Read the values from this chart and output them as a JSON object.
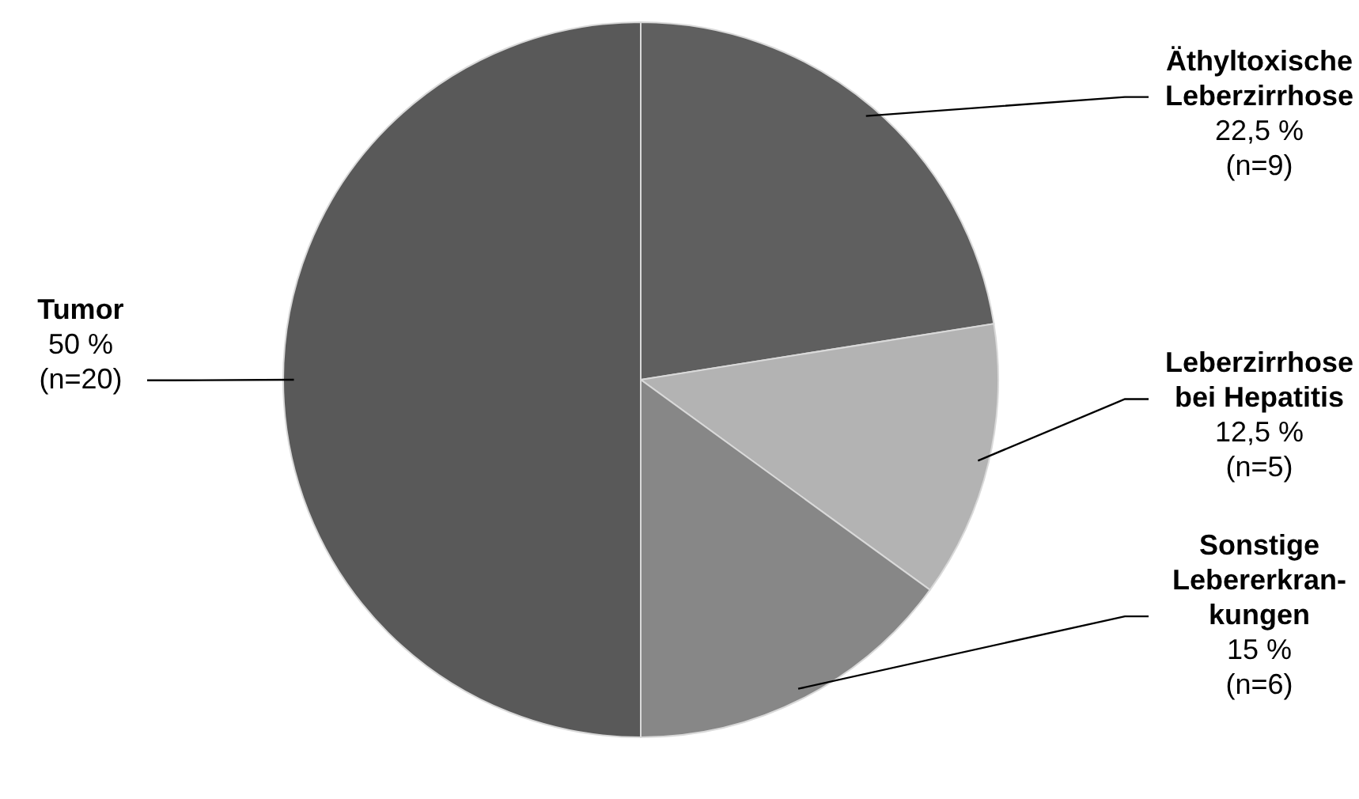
{
  "chart_data": {
    "type": "pie",
    "categories": [
      "Äthyltoxische\nLeberzirrhose",
      "Leberzirrhose\nbei Hepatitis",
      "Sonstige\nLebererkran-\nkungen",
      "Tumor"
    ],
    "values": [
      9,
      5,
      6,
      20
    ],
    "value_labels": [
      "22,5 %\n(n=9)",
      "12,5 %\n(n=5)",
      "15 %\n(n=6)",
      "50 %\n(n=20)"
    ],
    "colors": [
      "#5f5f5f",
      "#b3b3b3",
      "#878787",
      "#595959"
    ]
  }
}
